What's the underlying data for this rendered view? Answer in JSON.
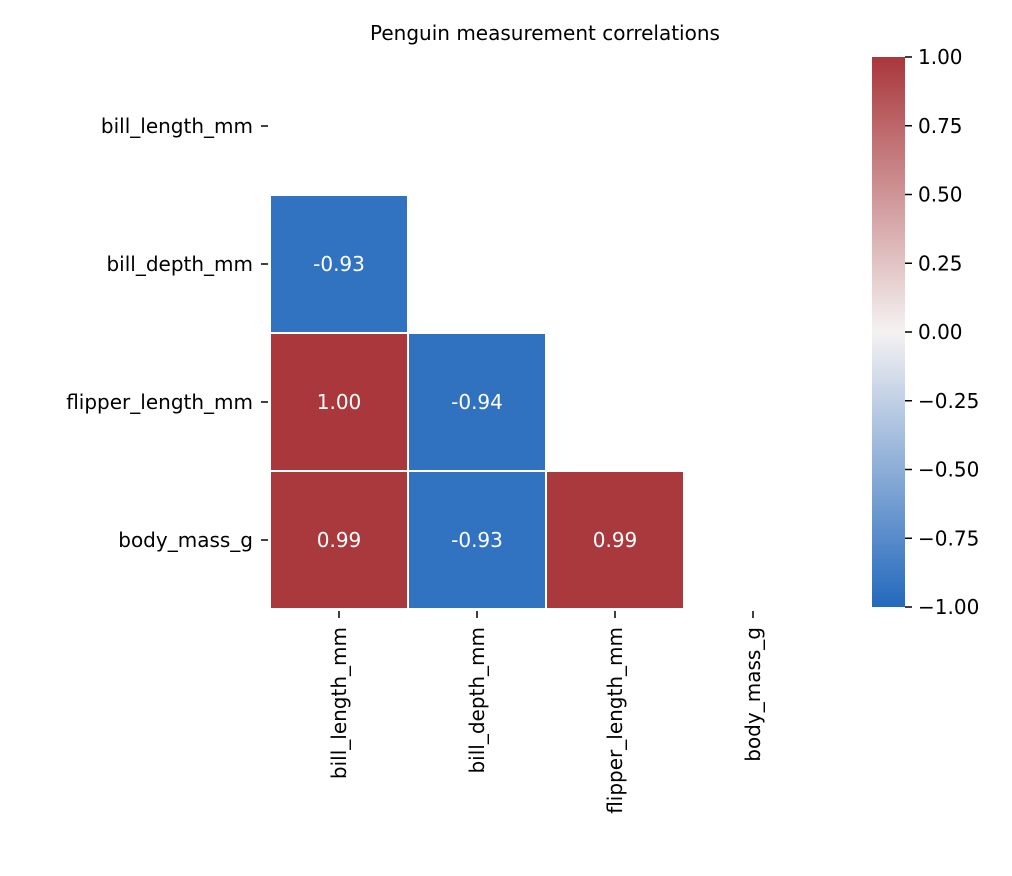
{
  "chart_data": {
    "type": "heatmap",
    "title": "Penguin measurement correlations",
    "variables": [
      "bill_length_mm",
      "bill_depth_mm",
      "flipper_length_mm",
      "body_mass_g"
    ],
    "mask": "upper-triangle-including-diagonal",
    "cells": [
      {
        "row": "bill_depth_mm",
        "col": "bill_length_mm",
        "value": -0.93,
        "label": "-0.93"
      },
      {
        "row": "flipper_length_mm",
        "col": "bill_length_mm",
        "value": 1.0,
        "label": "1.00"
      },
      {
        "row": "flipper_length_mm",
        "col": "bill_depth_mm",
        "value": -0.94,
        "label": "-0.94"
      },
      {
        "row": "body_mass_g",
        "col": "bill_length_mm",
        "value": 0.99,
        "label": "0.99"
      },
      {
        "row": "body_mass_g",
        "col": "bill_depth_mm",
        "value": -0.93,
        "label": "-0.93"
      },
      {
        "row": "body_mass_g",
        "col": "flipper_length_mm",
        "value": 0.99,
        "label": "0.99"
      }
    ],
    "colorbar": {
      "range": [
        -1,
        1
      ],
      "ticks": [
        1.0,
        0.75,
        0.5,
        0.25,
        0.0,
        -0.25,
        -0.5,
        -0.75,
        -1.0
      ],
      "tick_labels": [
        "1.00",
        "0.75",
        "0.50",
        "0.25",
        "0.00",
        "−0.25",
        "−0.50",
        "−0.75",
        "−1.00"
      ],
      "colormap": "vlag",
      "colors": {
        "low": "#2369bd",
        "mid": "#f5f2f2",
        "high": "#a9373b"
      }
    },
    "annotation_color": "#ffffff",
    "cell_border_color": "#ffffff"
  }
}
